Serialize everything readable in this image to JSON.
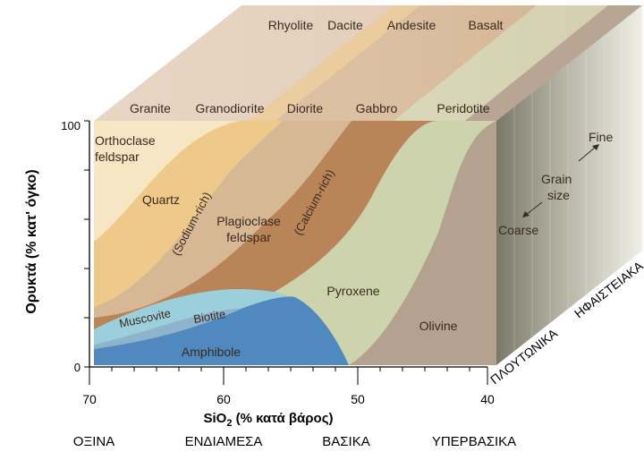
{
  "colors": {
    "top_face": "#e6d4c2",
    "orthoclase": "#f6e6c4",
    "quartz": "#efc98a",
    "plag_sodium": "#d6b894",
    "plag_calcium": "#b98458",
    "pyroxene": "#cdd3ac",
    "olivine": "#b5a190",
    "muscovite": "#9ccfdc",
    "biotite": "#8fb3cc",
    "amphibole": "#4f89bf"
  },
  "volcanic_rocks": [
    "Rhyolite",
    "Dacite",
    "Andesite",
    "Basalt"
  ],
  "plutonic_rocks": [
    "Granite",
    "Granodiorite",
    "Diorite",
    "Gabbro",
    "Peridotite"
  ],
  "minerals": {
    "orthoclase_line1": "Orthoclase",
    "orthoclase_line2": "feldspar",
    "quartz": "Quartz",
    "sodium_rich": "(Sodium-rich)",
    "plagioclase_line1": "Plagioclase",
    "plagioclase_line2": "feldspar",
    "calcium_rich": "(Calcium-rich)",
    "pyroxene": "Pyroxene",
    "muscovite": "Muscovite",
    "biotite": "Biotite",
    "amphibole": "Amphibole",
    "olivine": "Olivine"
  },
  "grain_size": {
    "fine": "Fine",
    "grain": "Grain",
    "size": "size",
    "coarse": "Coarse"
  },
  "side_labels": {
    "plutonic": "ΠΛΟΥΤΩΝΙΚΑ",
    "volcanic": "ΗΦΑΙΣΤΕΙΑΚΑ"
  },
  "y_axis": {
    "label": "Ορυκτά (% κατ' όγκο)",
    "max_label": "100",
    "min_label": "0"
  },
  "x_axis": {
    "label_prefix": "SiO",
    "label_sub": "2",
    "label_suffix": " (% κατά βάρος)",
    "ticks": [
      "70",
      "60",
      "50",
      "40"
    ]
  },
  "categories": [
    "ΟΞΙΝΑ",
    "ΕΝΔΙΑΜΕΣΑ",
    "ΒΑΣΙΚΑ",
    "ΥΠΕΡΒΑΣΙΚΑ"
  ]
}
